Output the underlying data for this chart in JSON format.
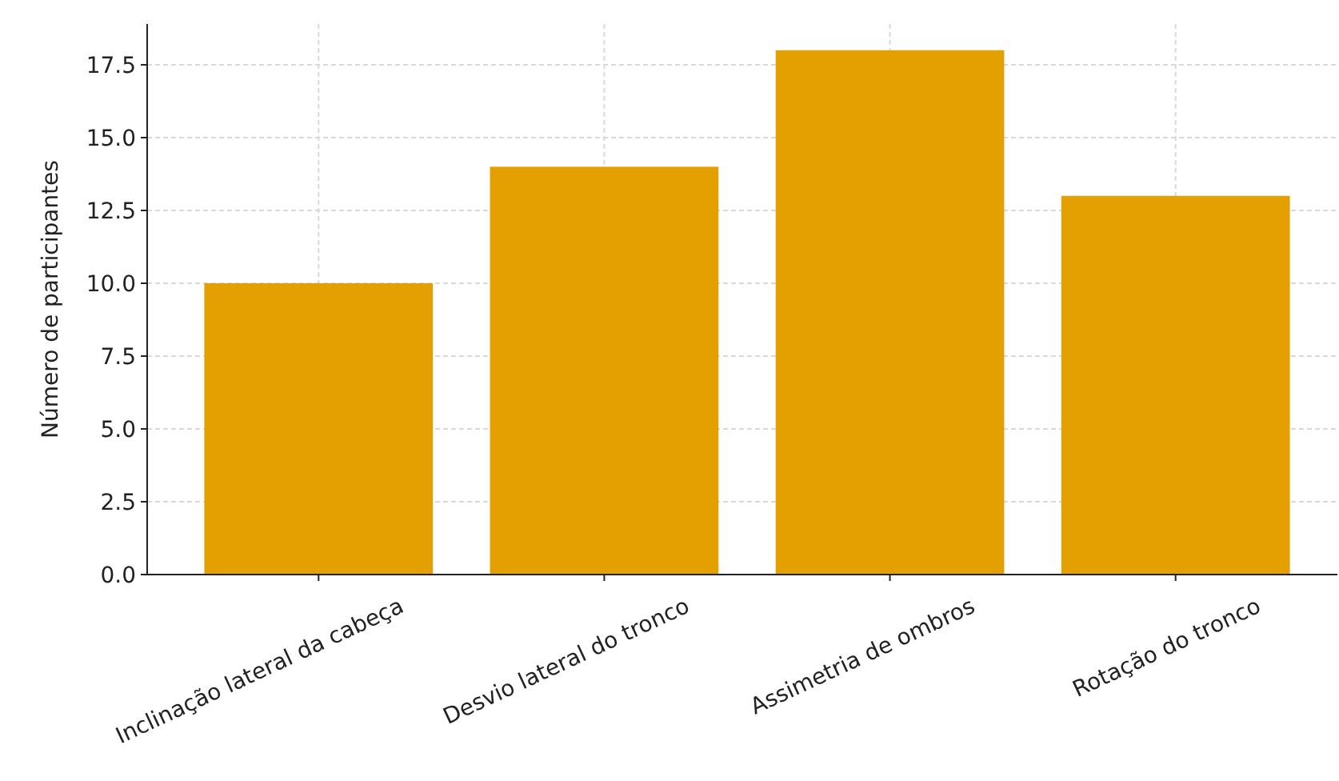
{
  "chart_data": {
    "type": "bar",
    "ylabel": "Número de participantes",
    "categories": [
      "Inclinação lateral da cabeça",
      "Desvio lateral do tronco",
      "Assimetria de ombros",
      "Rotação do tronco"
    ],
    "values": [
      10,
      14,
      18,
      13
    ],
    "color": "#e3a000",
    "ylim": [
      0,
      18.9
    ],
    "yticks": [
      {
        "value": 0,
        "label": "0.0"
      },
      {
        "value": 2.5,
        "label": "2.5"
      },
      {
        "value": 5,
        "label": "5.0"
      },
      {
        "value": 7.5,
        "label": "7.5"
      },
      {
        "value": 10,
        "label": "10.0"
      },
      {
        "value": 12.5,
        "label": "12.5"
      },
      {
        "value": 15,
        "label": "15.0"
      },
      {
        "value": 17.5,
        "label": "17.5"
      }
    ],
    "grid": true
  }
}
